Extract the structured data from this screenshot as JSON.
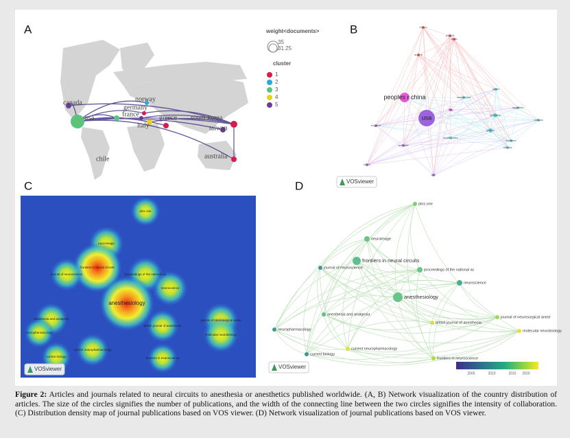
{
  "panels": {
    "a": {
      "label": "A",
      "legend": {
        "weight_title": "weight<documents>",
        "weights": [
          "35",
          "31.25"
        ],
        "cluster_title": "cluster",
        "clusters": [
          "1",
          "2",
          "3",
          "4",
          "5"
        ]
      },
      "countries": [
        "canada",
        "usa",
        "chile",
        "norway",
        "germany",
        "france",
        "italy",
        "greece",
        "south korea",
        "taiwan",
        "australia"
      ]
    },
    "b": {
      "label": "B",
      "brand": "VOSviewer",
      "nodes": [
        "france",
        "poland",
        "austria",
        "peoples r china",
        "usa",
        "switzerland",
        "japan",
        "argentina",
        "germany",
        "italy",
        "england",
        "greece",
        "canada",
        "scotland",
        "norway",
        "south korea",
        "australia",
        "brazil",
        "spain",
        "iran"
      ]
    },
    "c": {
      "label": "C",
      "brand": "VOSviewer",
      "nodes": [
        "plos one",
        "neuroimage",
        "frontiers in neural circuits",
        "journal of neuroscience",
        "proceedings of the national ac",
        "neuroscience",
        "anesthesiology",
        "anesthesia and analgesia",
        "neuropharmacology",
        "british journal of anesthesia",
        "current neuropharmacology",
        "current biology",
        "frontiers in neuroscience",
        "journal of neurosurgical anest",
        "molecular neurobiology"
      ]
    },
    "d": {
      "label": "D",
      "brand": "VOSviewer",
      "nodes": [
        "plos one",
        "neuroimage",
        "frontiers in neural circuits",
        "journal of neuroscience",
        "proceedings of the national ac",
        "neuroscience",
        "anesthesiology",
        "anesthesia and analgesia",
        "neuropharmacology",
        "british journal of anesthesia",
        "current neuropharmacology",
        "current biology",
        "frontiers in neuroscience",
        "journal of neurosurgical anest",
        "molecular neurobiology"
      ],
      "colorbar_ticks": [
        "2005",
        "2010",
        "2015",
        "2020"
      ]
    }
  },
  "caption": {
    "lead": "Figure 2:",
    "text": " Articles and journals related to neural circuits to anesthesia or anesthetics published worldwide. (A, B) Network visualization of the country distribution of articles. The size of the circles signifies the number of publications, and the width of the connecting line between the two circles signifies the intensity of collaboration. (C) Distribution density map of journal publications based on VOS viewer. (D) Network visualization of journal publications based on VOS viewer."
  }
}
